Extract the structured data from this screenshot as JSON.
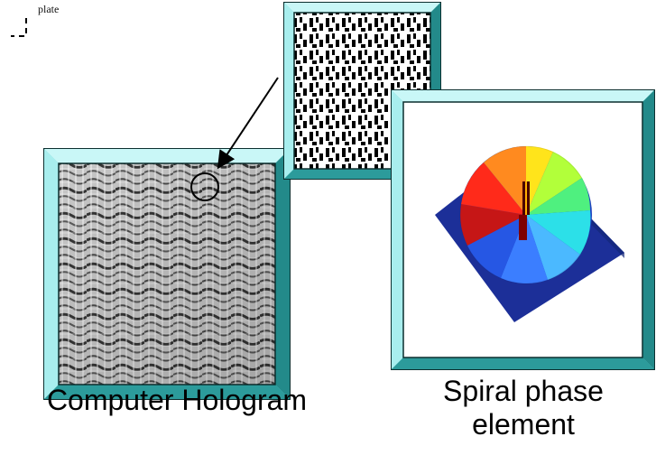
{
  "labels": {
    "corner_label": "plate",
    "computer_hologram": "Computer Hologram",
    "spiral_phase_line1": "Spiral phase",
    "spiral_phase_line2": "element"
  },
  "colors": {
    "frame_face": "#70d6d6",
    "frame_light": "#c9f7f7",
    "frame_dark": "#238a8a",
    "frame_outline": "#0c2f2f",
    "plate_blue": "#1c2f98",
    "hologram_dark": "#505050",
    "hologram_light": "#f4f4f4"
  },
  "icons": {
    "circle_marker": "circle",
    "arrow": "arrow",
    "spiral_wheel": "spiral-phase-wheel"
  }
}
